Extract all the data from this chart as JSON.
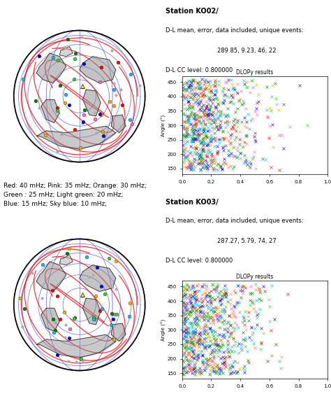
{
  "station_ko02": {
    "title": "Station KO02/",
    "line1": "D-L mean, error, data included, unique events:",
    "line2": "289.85, 9.23, 46, 22",
    "line3": "D-L CC level: 0.800000",
    "scatter_title": "DLOPy results",
    "ylabel": "Angle (°)",
    "ylim": [
      130,
      470
    ],
    "xlim": [
      0.0,
      1.0
    ],
    "yticks": [
      150,
      200,
      250,
      300,
      350,
      400,
      450
    ]
  },
  "station_ko03": {
    "title": "Station KO03/",
    "line1": "D-L mean, error, data included, unique events:",
    "line2": "287.27, 5.79, 74, 27",
    "line3": "D-L CC level: 0.800000",
    "scatter_title": "DLOPy results",
    "ylabel": "Angle (°)",
    "ylim": [
      130,
      470
    ],
    "xlim": [
      0.0,
      1.0
    ],
    "yticks": [
      150,
      200,
      250,
      300,
      350,
      400,
      450
    ]
  },
  "legend_text": "Red: 40 mHz; Pink: 35 mHz; Orange: 30 mHz;\nGreen : 25 mHz; Light green: 20 mHz;\nBlue: 15 mHz; Sky blue: 10 mHz;",
  "freq_colors": [
    "red",
    "hotpink",
    "orange",
    "green",
    "limegreen",
    "blue",
    "deepskyblue"
  ],
  "bg_color": "#ffffff",
  "seed": 42
}
